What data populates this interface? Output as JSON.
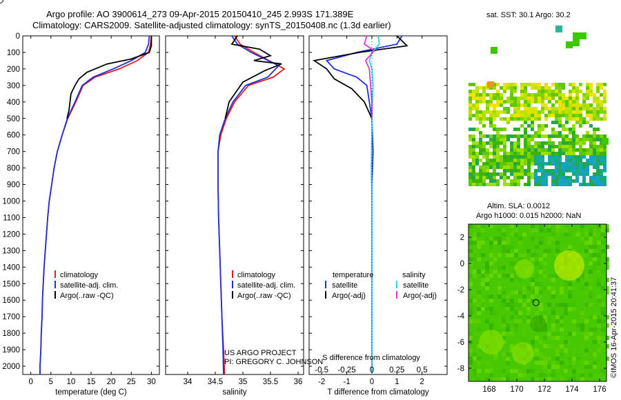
{
  "header": {
    "line1": "Argo profile: AO 3900614_273 09-Apr-2015 20150410_245 2.993S 171.389E",
    "line2": "Climatology: CARS2009. Satellite-adjusted climatology: synTS_20150408.nc (1.3d earlier)"
  },
  "credits": {
    "project": "US ARGO PROJECT",
    "pi": "PI: GREGORY C. JOHNSON",
    "footer": "©IMOS 16-Apr-2015 20:41:37"
  },
  "colors": {
    "climatology": "#e41a1c",
    "satellite_adj": "#1f2fd6",
    "argo": "#000000",
    "salinity_satellite": "#22d8e8",
    "salinity_argo": "#e632d6"
  },
  "chart_data": [
    {
      "type": "line",
      "xlabel": "temperature (deg C)",
      "ylabel": "",
      "xlim": [
        -2,
        32
      ],
      "ylim": [
        2050,
        0
      ],
      "xticks": [
        0,
        5,
        10,
        15,
        20,
        25,
        30
      ],
      "yticks": [
        0,
        100,
        200,
        300,
        400,
        500,
        600,
        700,
        800,
        900,
        1000,
        1100,
        1200,
        1300,
        1400,
        1500,
        1600,
        1700,
        1800,
        1900,
        2000
      ],
      "legend": [
        "climatology",
        "satellite-adj. clim.",
        "Argo(..raw -QC)"
      ],
      "series": [
        {
          "name": "climatology",
          "color": "#e41a1c",
          "points": [
            [
              30,
              0
            ],
            [
              29.8,
              50
            ],
            [
              29.3,
              100
            ],
            [
              26.5,
              150
            ],
            [
              22,
              200
            ],
            [
              16,
              250
            ],
            [
              13,
              300
            ],
            [
              11.2,
              400
            ],
            [
              9.2,
              500
            ],
            [
              7.8,
              600
            ],
            [
              6.6,
              700
            ],
            [
              5.8,
              800
            ],
            [
              5.2,
              900
            ],
            [
              4.6,
              1000
            ],
            [
              4.2,
              1100
            ],
            [
              3.9,
              1200
            ],
            [
              3.6,
              1300
            ],
            [
              3.3,
              1400
            ],
            [
              3.1,
              1500
            ],
            [
              2.9,
              1600
            ],
            [
              2.8,
              1700
            ],
            [
              2.6,
              1800
            ],
            [
              2.5,
              1900
            ],
            [
              2.3,
              2000
            ],
            [
              2.3,
              2050
            ]
          ]
        },
        {
          "name": "satellite-adj. clim.",
          "color": "#1f2fd6",
          "points": [
            [
              29.5,
              0
            ],
            [
              29.3,
              50
            ],
            [
              28.5,
              100
            ],
            [
              25,
              150
            ],
            [
              20.5,
              200
            ],
            [
              15.5,
              250
            ],
            [
              12.8,
              300
            ],
            [
              11,
              400
            ],
            [
              9.1,
              500
            ],
            [
              7.8,
              600
            ],
            [
              6.6,
              700
            ],
            [
              5.8,
              800
            ],
            [
              5.2,
              900
            ],
            [
              4.6,
              1000
            ],
            [
              4.2,
              1100
            ],
            [
              3.9,
              1200
            ],
            [
              3.6,
              1300
            ],
            [
              3.3,
              1400
            ],
            [
              3.1,
              1500
            ],
            [
              2.9,
              1600
            ],
            [
              2.8,
              1700
            ],
            [
              2.6,
              1800
            ],
            [
              2.5,
              1900
            ],
            [
              2.3,
              2000
            ],
            [
              2.3,
              2050
            ]
          ]
        },
        {
          "name": "Argo(..raw -QC)",
          "color": "#000000",
          "points": [
            [
              30,
              0
            ],
            [
              30,
              60
            ],
            [
              29.5,
              100
            ],
            [
              25,
              140
            ],
            [
              19,
              170
            ],
            [
              14,
              220
            ],
            [
              12,
              260
            ],
            [
              11,
              300
            ],
            [
              10,
              350
            ],
            [
              9.5,
              450
            ],
            [
              9,
              500
            ]
          ]
        }
      ]
    },
    {
      "type": "line",
      "xlabel": "salinity",
      "ylabel": "",
      "xlim": [
        33.6,
        36.1
      ],
      "ylim": [
        2050,
        0
      ],
      "xticks": [
        34,
        34.5,
        35,
        35.5,
        36
      ],
      "legend": [
        "climatology",
        "satellite-adj. clim.",
        "Argo(..raw -QC)"
      ],
      "series": [
        {
          "name": "climatology",
          "color": "#e41a1c",
          "points": [
            [
              34.85,
              0
            ],
            [
              34.95,
              50
            ],
            [
              35.2,
              100
            ],
            [
              35.75,
              200
            ],
            [
              35.55,
              250
            ],
            [
              35.1,
              300
            ],
            [
              34.85,
              400
            ],
            [
              34.7,
              500
            ],
            [
              34.6,
              600
            ],
            [
              34.55,
              700
            ],
            [
              34.55,
              900
            ],
            [
              34.56,
              1100
            ],
            [
              34.58,
              1300
            ],
            [
              34.6,
              1500
            ],
            [
              34.62,
              1700
            ],
            [
              34.65,
              1900
            ],
            [
              34.67,
              2050
            ]
          ]
        },
        {
          "name": "satellite-adj. clim.",
          "color": "#1f2fd6",
          "points": [
            [
              34.8,
              0
            ],
            [
              34.9,
              50
            ],
            [
              35.15,
              100
            ],
            [
              35.65,
              180
            ],
            [
              35.45,
              250
            ],
            [
              35.05,
              300
            ],
            [
              34.82,
              400
            ],
            [
              34.68,
              500
            ],
            [
              34.58,
              600
            ],
            [
              34.55,
              700
            ],
            [
              34.55,
              900
            ],
            [
              34.56,
              1100
            ],
            [
              34.58,
              1300
            ],
            [
              34.6,
              1500
            ],
            [
              34.62,
              1700
            ],
            [
              34.64,
              1900
            ],
            [
              34.65,
              2050
            ]
          ]
        },
        {
          "name": "Argo(..raw -QC)",
          "color": "#000000",
          "points": [
            [
              34.9,
              0
            ],
            [
              34.8,
              50
            ],
            [
              35.3,
              80
            ],
            [
              35.5,
              120
            ],
            [
              35.2,
              150
            ],
            [
              35.7,
              170
            ],
            [
              35.4,
              210
            ],
            [
              35.0,
              280
            ],
            [
              34.75,
              400
            ],
            [
              34.68,
              500
            ]
          ]
        }
      ]
    },
    {
      "type": "line",
      "xlabel_top": "S difference from climatology",
      "xlabel": "T difference from climatology",
      "xlim": [
        -2.5,
        3
      ],
      "ylim": [
        2050,
        0
      ],
      "xticks": [
        -2,
        -1,
        0,
        1,
        2
      ],
      "xticks_top": [
        "-0.5",
        "-0.25",
        "0",
        "0.25",
        "0.5"
      ],
      "legend_headings": [
        "temperature",
        "salinity"
      ],
      "legend": [
        "satellite",
        "Argo(-adj)",
        "satellite",
        "Argo(-adj)"
      ],
      "series": [
        {
          "name": "temperature satellite",
          "color": "#1f2fd6",
          "points": [
            [
              1.2,
              0
            ],
            [
              1.0,
              50
            ],
            [
              -0.6,
              100
            ],
            [
              -1.8,
              150
            ],
            [
              -1.5,
              200
            ],
            [
              -0.6,
              250
            ],
            [
              -0.2,
              300
            ],
            [
              -0.1,
              400
            ],
            [
              0,
              500
            ],
            [
              0.05,
              700
            ],
            [
              0,
              900
            ],
            [
              0,
              1300
            ],
            [
              0,
              1700
            ],
            [
              0,
              2050
            ]
          ]
        },
        {
          "name": "temperature Argo(-adj)",
          "color": "#000000",
          "points": [
            [
              1.0,
              0
            ],
            [
              1.4,
              60
            ],
            [
              -0.5,
              100
            ],
            [
              -2.3,
              150
            ],
            [
              -1.8,
              200
            ],
            [
              -1.5,
              260
            ],
            [
              -0.8,
              320
            ],
            [
              -0.3,
              400
            ],
            [
              0,
              500
            ]
          ]
        },
        {
          "name": "salinity satellite",
          "color": "#22d8e8",
          "points": [
            [
              0.25,
              0
            ],
            [
              0.3,
              50
            ],
            [
              0.0,
              100
            ],
            [
              -0.1,
              150
            ],
            [
              0,
              200
            ],
            [
              0.05,
              300
            ],
            [
              0.02,
              400
            ],
            [
              0,
              600
            ],
            [
              -0.02,
              800
            ],
            [
              0,
              1000
            ],
            [
              0,
              1400
            ],
            [
              0,
              1800
            ],
            [
              0,
              2050
            ]
          ]
        },
        {
          "name": "salinity Argo(-adj)",
          "color": "#e632d6",
          "points": [
            [
              -0.2,
              0
            ],
            [
              -0.3,
              50
            ],
            [
              0.1,
              90
            ],
            [
              -0.25,
              150
            ],
            [
              -0.1,
              200
            ],
            [
              -0.05,
              300
            ],
            [
              0,
              400
            ],
            [
              0,
              500
            ]
          ]
        }
      ]
    },
    {
      "type": "heatmap",
      "title": "sat. SST: 30.1  Argo: 30.2",
      "xlim": [
        166.5,
        176.5
      ],
      "ylim": [
        -9,
        3
      ],
      "xticks": [
        168,
        170,
        172,
        174,
        176
      ],
      "yticks": [
        2,
        0,
        -2,
        -4,
        -6,
        -8
      ],
      "marker": [
        171.389,
        -2.993
      ]
    },
    {
      "type": "heatmap",
      "title": "Altim. SLA: 0.0012",
      "subtitle": "Argo h1000: 0.015 h2000: NaN",
      "xlim": [
        166.5,
        176.5
      ],
      "ylim": [
        -9,
        3
      ],
      "xticks": [
        168,
        170,
        172,
        174,
        176
      ],
      "yticks": [
        2,
        0,
        -2,
        -4,
        -6,
        -8
      ],
      "marker": [
        171.389,
        -2.993
      ]
    }
  ]
}
